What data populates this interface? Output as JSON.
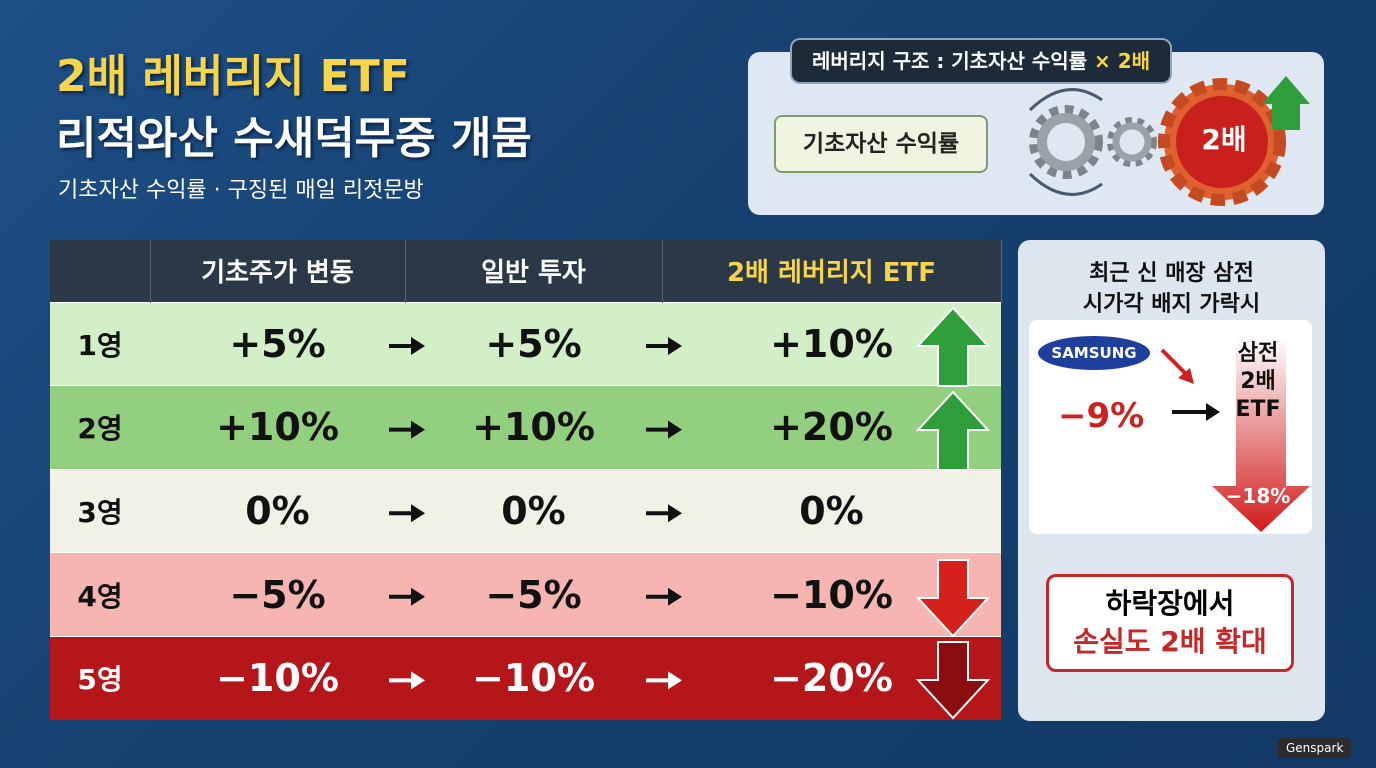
{
  "header": {
    "title_line1": "2배 레버리지 ETF",
    "title_line2": "리적와산 수새덕무중 개뭄",
    "subtitle": "기초자산 수익률 · 구징된 매일 리젓문방"
  },
  "structure": {
    "label": "레버리지 구조 : 기초자산 수익률",
    "label_highlight": "× 2배",
    "input": "기초자산 수익률",
    "output": "2배"
  },
  "table": {
    "columns": [
      "기초주가 변동",
      "일반 투자",
      "2배 레버리지 ETF"
    ],
    "rows": [
      [
        "1영",
        "+5%",
        "+5%",
        "+10%"
      ],
      [
        "2영",
        "+10%",
        "+10%",
        "+20%"
      ],
      [
        "3영",
        "0%",
        "0%",
        "0%"
      ],
      [
        "4영",
        "−5%",
        "−5%",
        "−10%"
      ],
      [
        "5영",
        "−10%",
        "−10%",
        "−20%"
      ]
    ]
  },
  "side": {
    "title_lines": [
      "최근 신 매장 삼전",
      "시가각 배지 가락시"
    ],
    "brand": "SAMSUNG",
    "stock_change": "−9%",
    "etf_lines": [
      "삼전",
      "2배",
      "ETF"
    ],
    "etf_change": "−18%",
    "note_lines": [
      "하락장에서",
      "손실도 2배 확대"
    ]
  },
  "watermark": "Genspark"
}
